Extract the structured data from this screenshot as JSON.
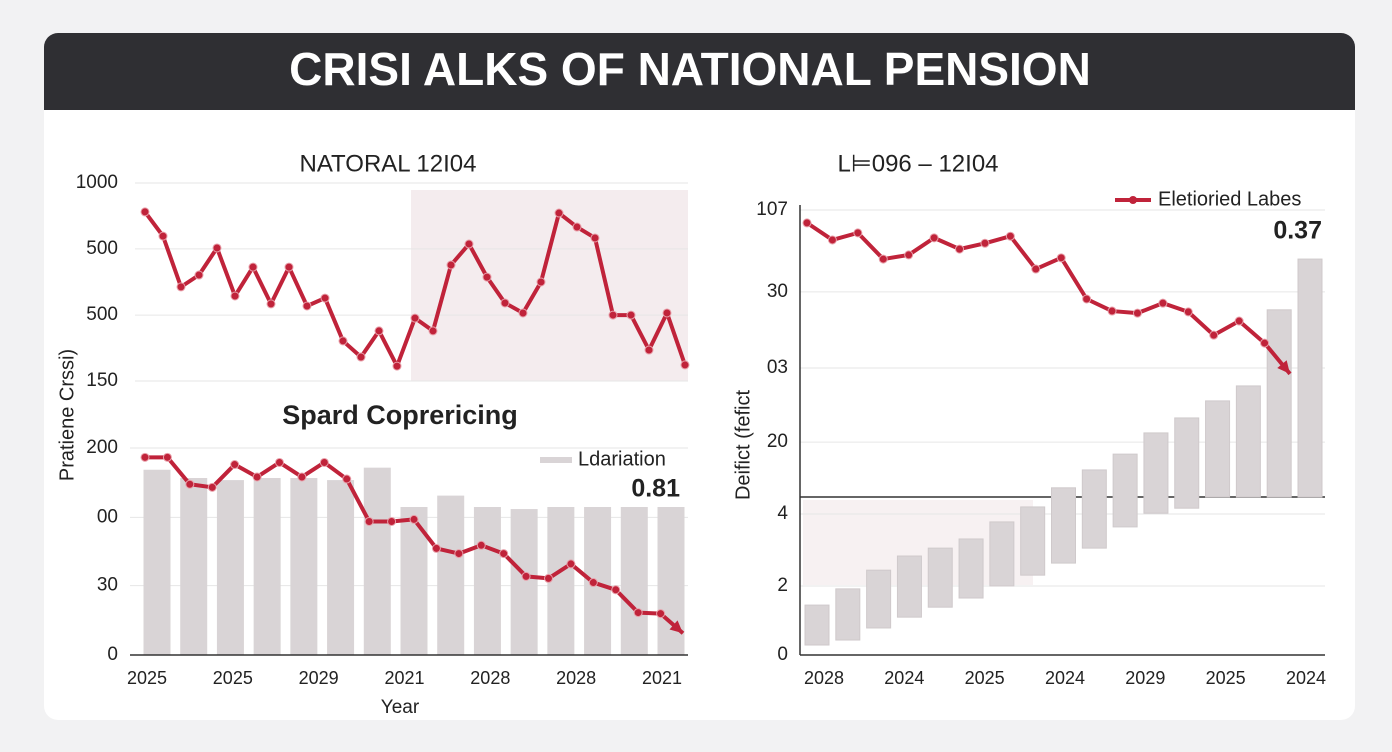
{
  "title": "CRISI ALKS OF NATIONAL PENSION",
  "chart_data": [
    {
      "type": "line",
      "title": "NATORAL 12I04",
      "color": "#c0233a",
      "grid": true,
      "ylim": [
        150,
        1000
      ],
      "yticks": [
        1000,
        {
          "value": 717,
          "label": "500"
        },
        {
          "value": 433,
          "label": "500"
        },
        150
      ],
      "values": [
        876,
        772,
        554,
        605,
        721,
        515,
        639,
        481,
        639,
        472,
        506,
        322,
        253,
        365,
        214,
        420,
        365,
        648,
        738,
        596,
        485,
        442,
        575,
        871,
        811,
        764,
        433,
        433,
        283,
        442,
        219
      ]
    },
    {
      "type": "combo",
      "title": "Spard Coprericing",
      "grid": true,
      "y_label": "Pratiene Crssi)",
      "x_label": "Year",
      "x_labels": [
        "2025",
        "2025",
        "2029",
        "2021",
        "2028",
        "2028",
        "2021"
      ],
      "ylim": [
        0,
        200
      ],
      "yticks": [
        200,
        {
          "value": 133,
          "label": "00"
        },
        {
          "value": 67,
          "label": "30"
        },
        0
      ],
      "bar_name": "Ldariation",
      "bar_color": "#d9d4d6",
      "bar_values": [
        179,
        171,
        169,
        171,
        171,
        169,
        181,
        143,
        154,
        143,
        141,
        143,
        143,
        143,
        143
      ],
      "line_color": "#c0233a",
      "line_values": [
        191,
        191,
        165,
        162,
        184,
        172,
        186,
        172,
        186,
        170,
        129,
        129,
        131,
        103,
        98,
        106,
        98,
        76,
        74,
        88,
        70,
        63,
        41,
        40,
        21
      ],
      "annotation": 0.81
    },
    {
      "type": "combo",
      "title": "L⊨096 – 12I04",
      "grid": true,
      "y_label": "Deifict (fefict",
      "x_labels": [
        "2028",
        "2024",
        "2025",
        "2024",
        "2029",
        "2025",
        "2024"
      ],
      "ylim": [
        0,
        107
      ],
      "yticks": [
        107,
        {
          "value": 87.3,
          "label": "30"
        },
        {
          "value": 69,
          "label": "03"
        },
        {
          "value": 51.2,
          "label": "20"
        },
        {
          "value": 33.9,
          "label": "4"
        },
        {
          "value": 16.6,
          "label": "2"
        },
        0
      ],
      "bar_color": "#d9d4d6",
      "bar_low": [
        2.4,
        3.6,
        6.5,
        9.1,
        11.5,
        13.7,
        16.6,
        19.2,
        22.1,
        25.7,
        30.8,
        34.1,
        35.3,
        38,
        38,
        38,
        38
      ],
      "bar_high": [
        12,
        15.9,
        20.4,
        23.8,
        25.7,
        27.9,
        32,
        35.6,
        40.2,
        44.5,
        48.3,
        53.4,
        57,
        61.1,
        64.7,
        83,
        95.2
      ],
      "line_name": "Eletioried Labes",
      "line_color": "#c0233a",
      "line_values": [
        103.9,
        99.8,
        101.5,
        95.2,
        96.2,
        100.3,
        97.6,
        99.0,
        100.7,
        92.8,
        95.5,
        85.6,
        82.7,
        82.2,
        84.6,
        82.5,
        76.9,
        80.3,
        75.0,
        67.6
      ],
      "annotation": 0.37
    }
  ]
}
